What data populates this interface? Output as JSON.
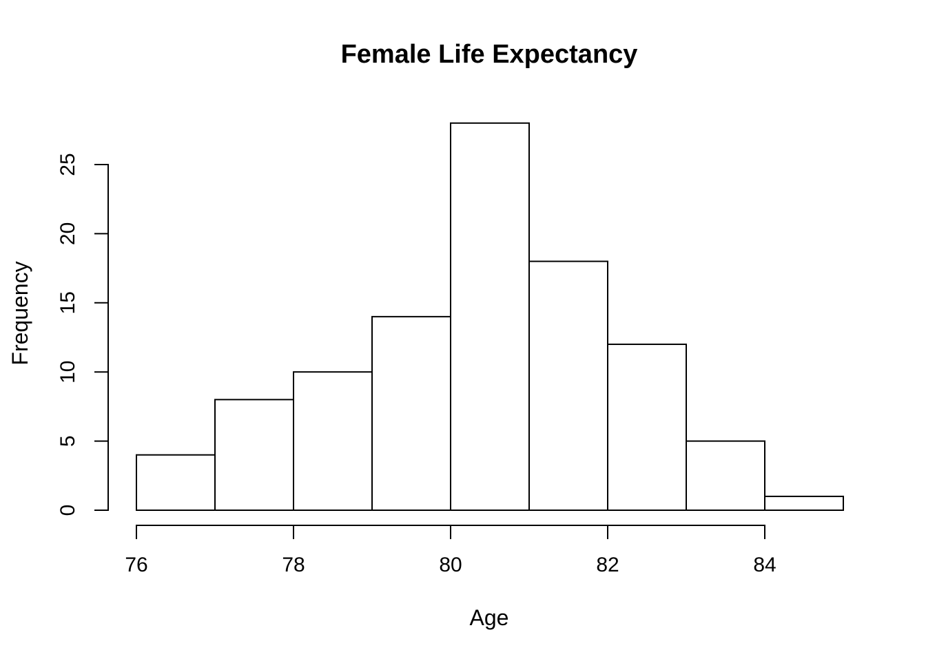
{
  "colors": {
    "foreground": "#000000",
    "background": "#ffffff",
    "bar_fill": "#ffffff",
    "bar_border": "#000000"
  },
  "chart_data": {
    "type": "bar",
    "subtype": "histogram",
    "title": "Female Life Expectancy",
    "xlabel": "Age",
    "ylabel": "Frequency",
    "bin_edges": [
      76,
      77,
      78,
      79,
      80,
      81,
      82,
      83,
      84,
      85
    ],
    "counts": [
      4,
      8,
      10,
      14,
      28,
      18,
      12,
      5,
      1
    ],
    "x_ticks": [
      76,
      78,
      80,
      82,
      84
    ],
    "y_ticks": [
      0,
      5,
      10,
      15,
      20,
      25
    ],
    "xlim": [
      76,
      85
    ],
    "ylim": [
      0,
      28
    ],
    "grid": false,
    "legend": false
  }
}
